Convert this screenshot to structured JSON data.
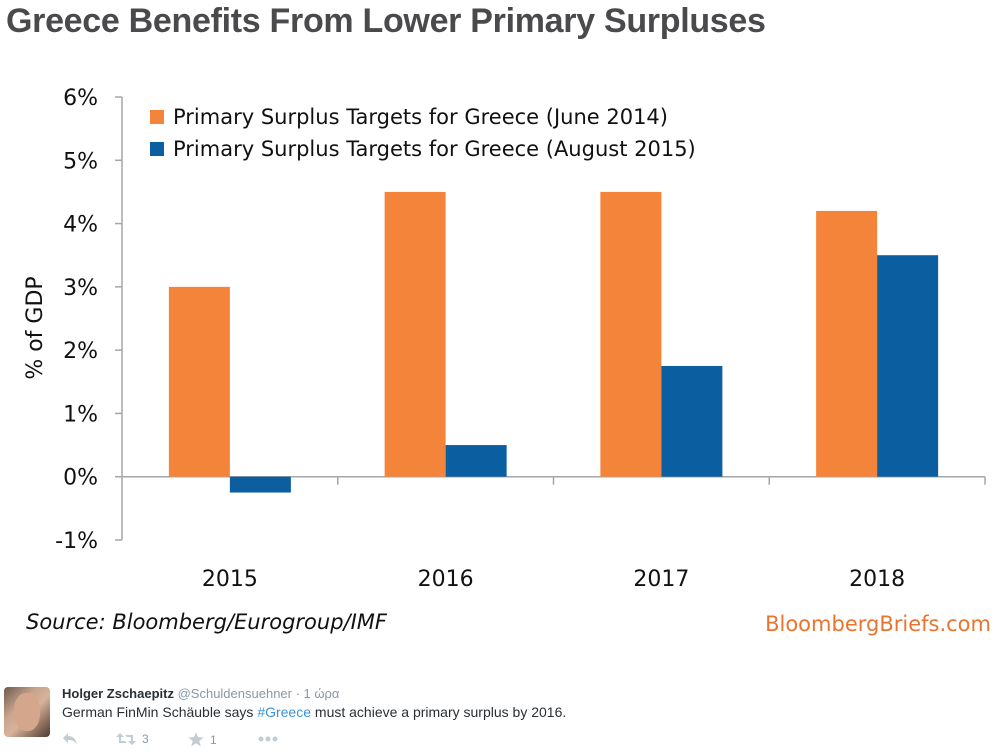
{
  "chart_data": {
    "type": "bar",
    "title": "Greece Benefits From Lower Primary Surpluses",
    "xlabel": "",
    "ylabel": "% of GDP",
    "categories": [
      "2015",
      "2016",
      "2017",
      "2018"
    ],
    "series": [
      {
        "name": "Primary Surplus Targets for Greece (June 2014)",
        "color": "#f5843b",
        "values": [
          3.0,
          4.5,
          4.5,
          4.2
        ]
      },
      {
        "name": "Primary Surplus Targets for Greece (August 2015)",
        "color": "#0b5e9f",
        "values": [
          -0.25,
          0.5,
          1.75,
          3.5
        ]
      }
    ],
    "ylim": [
      -1,
      6
    ],
    "yticks": [
      -1,
      0,
      1,
      2,
      3,
      4,
      5,
      6
    ],
    "ytick_labels": [
      "-1%",
      "0%",
      "1%",
      "2%",
      "3%",
      "4%",
      "5%",
      "6%"
    ],
    "grid": false,
    "legend_position": "top-left",
    "source": "Source: Bloomberg/Eurogroup/IMF",
    "brand": "BloombergBriefs.com"
  },
  "colors": {
    "axis": "#a6a6a6",
    "brand": "#e8742e",
    "link": "#3b94d9"
  },
  "tweet": {
    "author_name": "Holger Zschaepitz",
    "handle": "@Schuldensuehner",
    "time": "· 1 ώρα",
    "text_before": "German FinMin Schäuble says ",
    "hashtag": "#Greece",
    "text_after": " must achieve a primary surplus by 2016.",
    "actions": {
      "reply_icon": "reply-icon",
      "retweet_icon": "retweet-icon",
      "retweet_count": "3",
      "favorite_icon": "star-icon",
      "favorite_count": "1",
      "more_icon": "more-dots-icon"
    }
  }
}
